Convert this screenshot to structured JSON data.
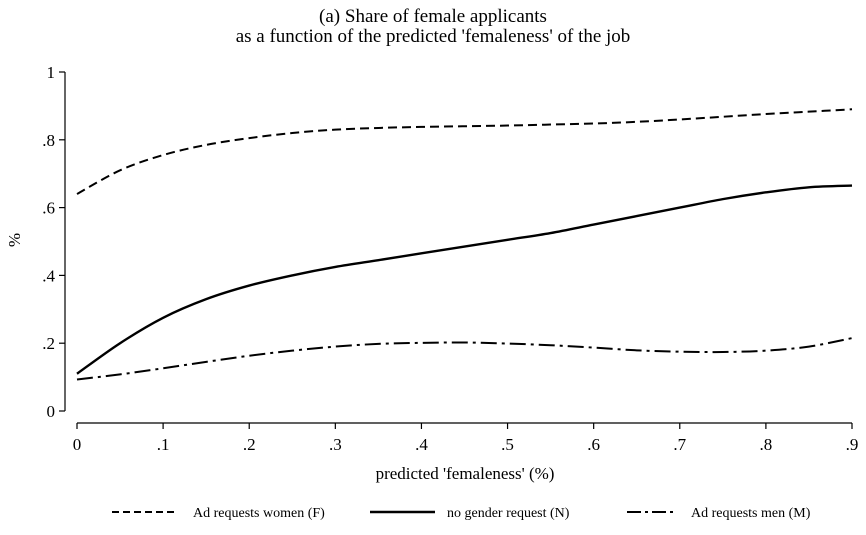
{
  "chart_data": {
    "type": "line",
    "title": "(a) Share of female applicants",
    "subtitle": "as a function of the predicted 'femaleness' of the job",
    "xlabel": "predicted 'femaleness' (%)",
    "ylabel": "%",
    "xlim": [
      0,
      0.9
    ],
    "ylim": [
      0,
      1
    ],
    "xticks": [
      0,
      0.1,
      0.2,
      0.3,
      0.4,
      0.5,
      0.6,
      0.7,
      0.8,
      0.9
    ],
    "xtick_labels": [
      "0",
      ".1",
      ".2",
      ".3",
      ".4",
      ".5",
      ".6",
      ".7",
      ".8",
      ".9"
    ],
    "yticks": [
      0,
      0.2,
      0.4,
      0.6,
      0.8,
      1
    ],
    "ytick_labels": [
      "0",
      ".2",
      ".4",
      ".6",
      ".8",
      "1"
    ],
    "grid": false,
    "legend_position": "bottom",
    "x": [
      0,
      0.05,
      0.1,
      0.15,
      0.2,
      0.25,
      0.3,
      0.35,
      0.4,
      0.45,
      0.5,
      0.55,
      0.6,
      0.65,
      0.7,
      0.75,
      0.8,
      0.85,
      0.9
    ],
    "series": [
      {
        "name": "Ad requests women (F)",
        "dash": "dashed",
        "values": [
          0.64,
          0.71,
          0.755,
          0.785,
          0.805,
          0.82,
          0.83,
          0.835,
          0.838,
          0.84,
          0.842,
          0.845,
          0.848,
          0.853,
          0.86,
          0.868,
          0.876,
          0.883,
          0.89
        ]
      },
      {
        "name": "no gender request (N)",
        "dash": "solid",
        "values": [
          0.11,
          0.2,
          0.275,
          0.33,
          0.37,
          0.4,
          0.425,
          0.445,
          0.465,
          0.485,
          0.505,
          0.525,
          0.55,
          0.575,
          0.6,
          0.625,
          0.645,
          0.66,
          0.665
        ]
      },
      {
        "name": "Ad requests men (M)",
        "dash": "dash-dot",
        "values": [
          0.093,
          0.108,
          0.126,
          0.145,
          0.163,
          0.178,
          0.19,
          0.198,
          0.201,
          0.202,
          0.199,
          0.194,
          0.187,
          0.179,
          0.175,
          0.174,
          0.178,
          0.19,
          0.215
        ]
      }
    ]
  }
}
